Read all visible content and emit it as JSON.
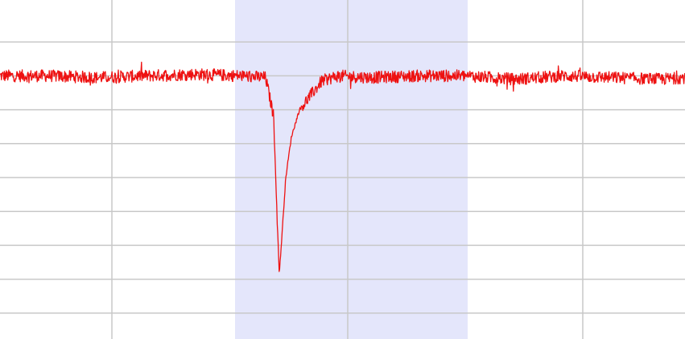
{
  "chart_data": {
    "type": "line",
    "title": "",
    "xlabel": "",
    "ylabel": "",
    "grid": true,
    "xlim": [
      0,
      851
    ],
    "ylim": [
      -10,
      0
    ],
    "highlight_region": {
      "x_start": 292,
      "x_end": 581,
      "color": "#e4e6fb"
    },
    "colors": {
      "line": "#ee1111",
      "grid": "#c8c8c8",
      "background": "#ffffff"
    },
    "series": [
      {
        "x": [
          0,
          60,
          120,
          180,
          240,
          300,
          330,
          340,
          344,
          347,
          350,
          355,
          362,
          372,
          385,
          400,
          420,
          460,
          520,
          580,
          640,
          700,
          760,
          820,
          851
        ],
        "y": [
          -2.0,
          -2.0,
          -2.05,
          -2.0,
          -1.95,
          -2.0,
          -2.05,
          -3.2,
          -6.0,
          -7.85,
          -6.8,
          -5.0,
          -3.8,
          -3.0,
          -2.6,
          -2.15,
          -2.0,
          -2.05,
          -2.0,
          -2.0,
          -2.1,
          -2.0,
          -2.05,
          -2.1,
          -2.05
        ]
      }
    ]
  }
}
